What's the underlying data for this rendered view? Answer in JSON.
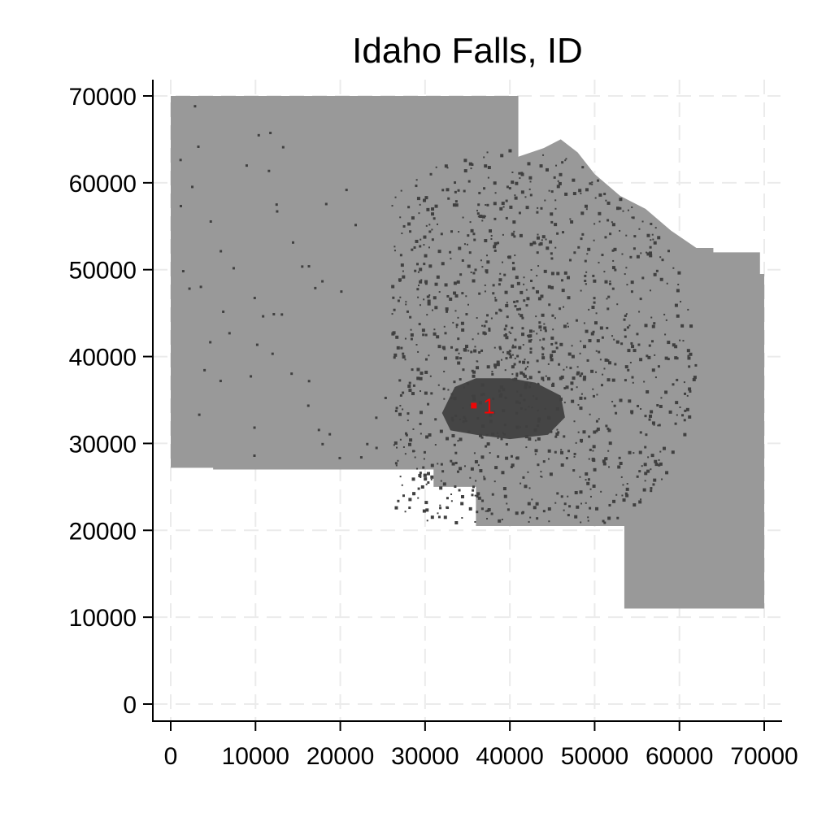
{
  "chart_data": {
    "type": "map",
    "title": "Idaho Falls, ID",
    "xlabel": "",
    "ylabel": "",
    "xlim": [
      0,
      70000
    ],
    "ylim": [
      0,
      70000
    ],
    "x_ticks": [
      0,
      10000,
      20000,
      30000,
      40000,
      50000,
      60000,
      70000
    ],
    "y_ticks": [
      0,
      10000,
      20000,
      30000,
      40000,
      50000,
      60000,
      70000
    ],
    "x_tick_labels": [
      "0",
      "10000",
      "20000",
      "30000",
      "40000",
      "50000",
      "60000",
      "70000"
    ],
    "y_tick_labels": [
      "0",
      "10000",
      "20000",
      "30000",
      "40000",
      "50000",
      "60000",
      "70000"
    ],
    "grid": true,
    "region_color": "#999999",
    "dense_color": "#404040",
    "highlight_color": "#ff0000",
    "region_outline": [
      [
        0,
        70000
      ],
      [
        41000,
        70000
      ],
      [
        41000,
        63000
      ],
      [
        44000,
        64000
      ],
      [
        46000,
        65000
      ],
      [
        48000,
        63500
      ],
      [
        50000,
        61000
      ],
      [
        53000,
        58500
      ],
      [
        56000,
        57000
      ],
      [
        59000,
        54500
      ],
      [
        62000,
        52500
      ],
      [
        64000,
        52500
      ],
      [
        64000,
        52000
      ],
      [
        69500,
        52000
      ],
      [
        69500,
        49500
      ],
      [
        70000,
        49500
      ],
      [
        70000,
        11000
      ],
      [
        53500,
        11000
      ],
      [
        53500,
        20500
      ],
      [
        36000,
        20500
      ],
      [
        36000,
        25000
      ],
      [
        31000,
        25000
      ],
      [
        31000,
        27000
      ],
      [
        5000,
        27000
      ],
      [
        5000,
        27200
      ],
      [
        0,
        27200
      ]
    ],
    "urban_core": [
      [
        32000,
        33500
      ],
      [
        33500,
        36500
      ],
      [
        36000,
        37500
      ],
      [
        40000,
        37500
      ],
      [
        43000,
        37000
      ],
      [
        46000,
        35500
      ],
      [
        46500,
        33000
      ],
      [
        44500,
        31000
      ],
      [
        40000,
        30500
      ],
      [
        36000,
        31000
      ],
      [
        33000,
        31500
      ]
    ],
    "city_points": [
      {
        "label": "1",
        "x": 35700,
        "y": 34400
      }
    ]
  }
}
